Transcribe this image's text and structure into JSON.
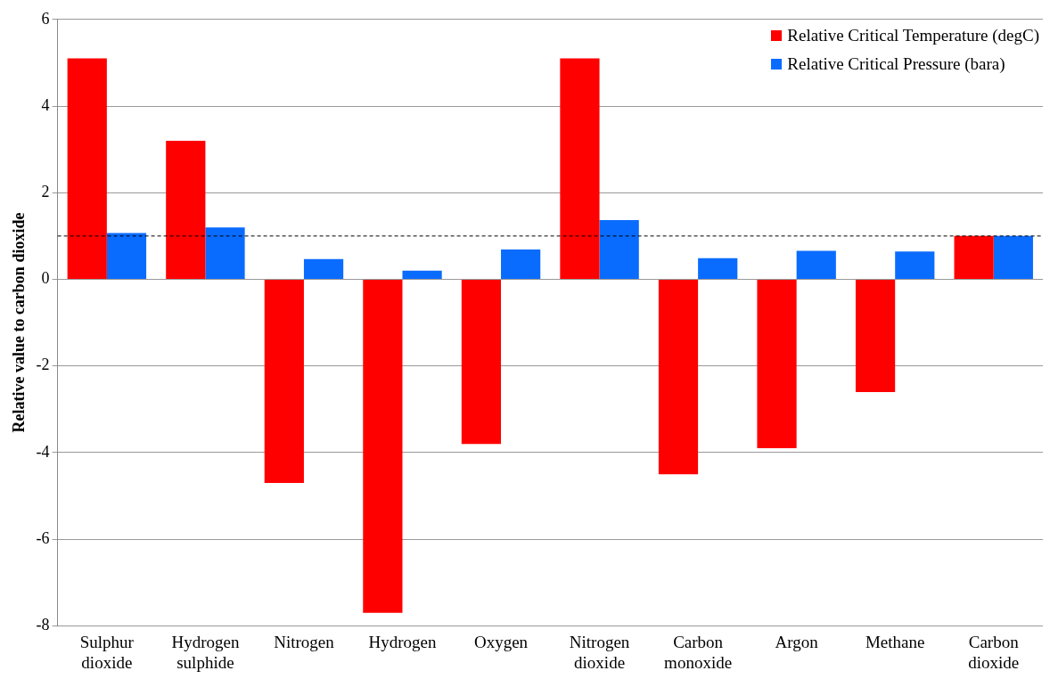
{
  "chart_data": {
    "type": "bar",
    "ylabel": "Relative value to carbon dioxide",
    "categories": [
      "Sulphur dioxide",
      "Hydrogen sulphide",
      "Nitrogen",
      "Hydrogen",
      "Oxygen",
      "Nitrogen dioxide",
      "Carbon monoxide",
      "Argon",
      "Methane",
      "Carbon dioxide"
    ],
    "series": [
      {
        "name": "Relative Critical Temperature (degC)",
        "color": "#ff0000",
        "values": [
          5.1,
          3.2,
          -4.7,
          -7.7,
          -3.8,
          5.1,
          -4.5,
          -3.9,
          -2.6,
          1.0
        ]
      },
      {
        "name": "Relative Critical Pressure (bara)",
        "color": "#0a6cff",
        "values": [
          1.07,
          1.2,
          0.47,
          0.2,
          0.69,
          1.37,
          0.49,
          0.66,
          0.64,
          1.0
        ]
      }
    ],
    "ylim": [
      -8,
      6
    ],
    "yticks": [
      -8,
      -6,
      -4,
      -2,
      0,
      2,
      4,
      6
    ],
    "grid": "y",
    "legend": "top right",
    "ref_lines": [
      {
        "axis": "y",
        "value": 1,
        "color": "#000000",
        "line_style": "dashed"
      }
    ]
  }
}
